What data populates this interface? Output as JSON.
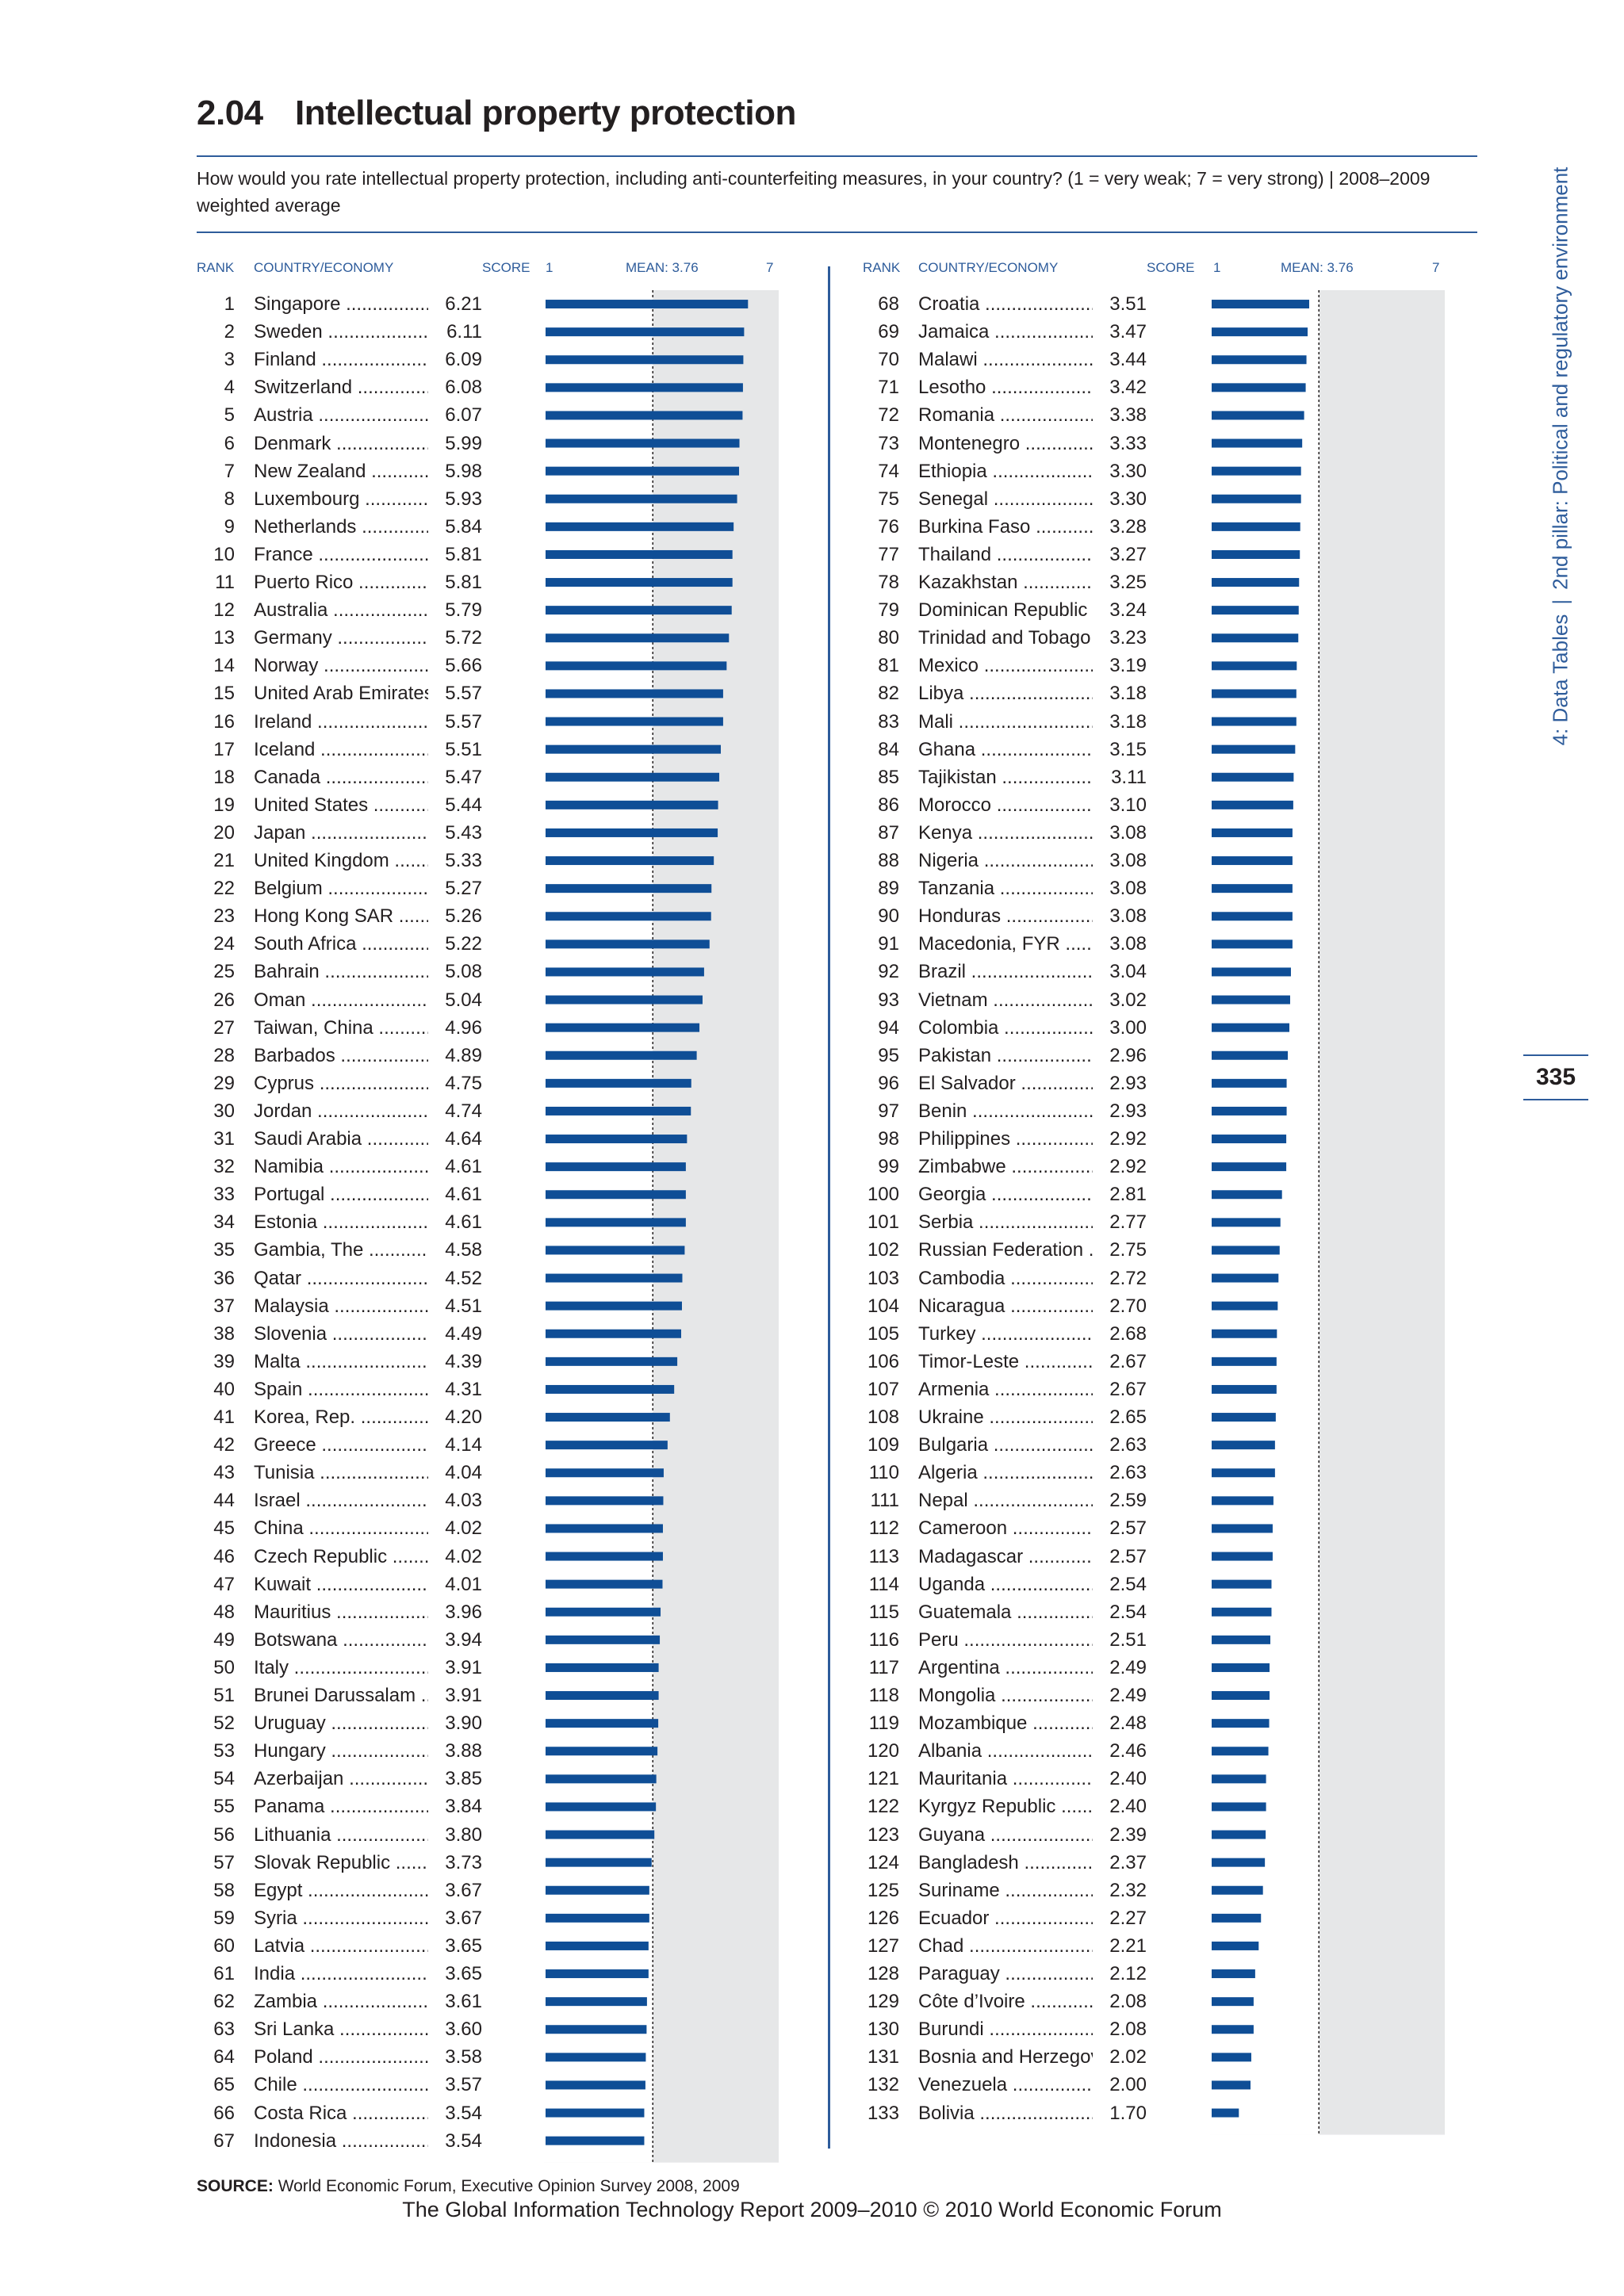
{
  "header": {
    "number": "2.04",
    "title": "Intellectual property protection",
    "question": "How would you rate intellectual property protection, including anti-counterfeiting measures, in your country? (1 = very weak; 7 = very strong)  |  2008–2009 weighted average"
  },
  "side_label": {
    "part1": "4: Data Tables",
    "separator": "|",
    "part2": "2nd pillar: Political and regulatory environment"
  },
  "page_number": "335",
  "columns": {
    "rank": "RANK",
    "country": "COUNTRY/ECONOMY",
    "score": "SCORE",
    "min": "1",
    "mean": "MEAN: 3.76",
    "max": "7"
  },
  "source": {
    "label": "SOURCE:",
    "text": "World Economic Forum, Executive Opinion Survey 2008, 2009"
  },
  "footer": "The Global Information Technology Report 2009–2010 © 2010 World Economic Forum",
  "colors": {
    "bar": "#0f4e96",
    "band": "#e6e7e8",
    "accent": "#2e5c9b"
  },
  "chart_data": {
    "type": "bar",
    "orientation": "horizontal",
    "xlim": [
      1,
      7
    ],
    "mean": 3.76,
    "mean_label": "MEAN: 3.76",
    "rows": [
      {
        "rank": "1",
        "country": "Singapore",
        "score": "6.21"
      },
      {
        "rank": "2",
        "country": "Sweden",
        "score": "6.11"
      },
      {
        "rank": "3",
        "country": "Finland",
        "score": "6.09"
      },
      {
        "rank": "4",
        "country": "Switzerland",
        "score": "6.08"
      },
      {
        "rank": "5",
        "country": "Austria",
        "score": "6.07"
      },
      {
        "rank": "6",
        "country": "Denmark",
        "score": "5.99"
      },
      {
        "rank": "7",
        "country": "New Zealand",
        "score": "5.98"
      },
      {
        "rank": "8",
        "country": "Luxembourg",
        "score": "5.93"
      },
      {
        "rank": "9",
        "country": "Netherlands",
        "score": "5.84"
      },
      {
        "rank": "10",
        "country": "France",
        "score": "5.81"
      },
      {
        "rank": "11",
        "country": "Puerto Rico",
        "score": "5.81"
      },
      {
        "rank": "12",
        "country": "Australia",
        "score": "5.79"
      },
      {
        "rank": "13",
        "country": "Germany",
        "score": "5.72"
      },
      {
        "rank": "14",
        "country": "Norway",
        "score": "5.66"
      },
      {
        "rank": "15",
        "country": "United Arab Emirates",
        "score": "5.57"
      },
      {
        "rank": "16",
        "country": "Ireland",
        "score": "5.57"
      },
      {
        "rank": "17",
        "country": "Iceland",
        "score": "5.51"
      },
      {
        "rank": "18",
        "country": "Canada",
        "score": "5.47"
      },
      {
        "rank": "19",
        "country": "United States",
        "score": "5.44"
      },
      {
        "rank": "20",
        "country": "Japan",
        "score": "5.43"
      },
      {
        "rank": "21",
        "country": "United Kingdom",
        "score": "5.33"
      },
      {
        "rank": "22",
        "country": "Belgium",
        "score": "5.27"
      },
      {
        "rank": "23",
        "country": "Hong Kong SAR",
        "score": "5.26"
      },
      {
        "rank": "24",
        "country": "South Africa",
        "score": "5.22"
      },
      {
        "rank": "25",
        "country": "Bahrain",
        "score": "5.08"
      },
      {
        "rank": "26",
        "country": "Oman",
        "score": "5.04"
      },
      {
        "rank": "27",
        "country": "Taiwan, China",
        "score": "4.96"
      },
      {
        "rank": "28",
        "country": "Barbados",
        "score": "4.89"
      },
      {
        "rank": "29",
        "country": "Cyprus",
        "score": "4.75"
      },
      {
        "rank": "30",
        "country": "Jordan",
        "score": "4.74"
      },
      {
        "rank": "31",
        "country": "Saudi Arabia",
        "score": "4.64"
      },
      {
        "rank": "32",
        "country": "Namibia",
        "score": "4.61"
      },
      {
        "rank": "33",
        "country": "Portugal",
        "score": "4.61"
      },
      {
        "rank": "34",
        "country": "Estonia",
        "score": "4.61"
      },
      {
        "rank": "35",
        "country": "Gambia, The",
        "score": "4.58"
      },
      {
        "rank": "36",
        "country": "Qatar",
        "score": "4.52"
      },
      {
        "rank": "37",
        "country": "Malaysia",
        "score": "4.51"
      },
      {
        "rank": "38",
        "country": "Slovenia",
        "score": "4.49"
      },
      {
        "rank": "39",
        "country": "Malta",
        "score": "4.39"
      },
      {
        "rank": "40",
        "country": "Spain",
        "score": "4.31"
      },
      {
        "rank": "41",
        "country": "Korea, Rep.",
        "score": "4.20"
      },
      {
        "rank": "42",
        "country": "Greece",
        "score": "4.14"
      },
      {
        "rank": "43",
        "country": "Tunisia",
        "score": "4.04"
      },
      {
        "rank": "44",
        "country": "Israel",
        "score": "4.03"
      },
      {
        "rank": "45",
        "country": "China",
        "score": "4.02"
      },
      {
        "rank": "46",
        "country": "Czech Republic",
        "score": "4.02"
      },
      {
        "rank": "47",
        "country": "Kuwait",
        "score": "4.01"
      },
      {
        "rank": "48",
        "country": "Mauritius",
        "score": "3.96"
      },
      {
        "rank": "49",
        "country": "Botswana",
        "score": "3.94"
      },
      {
        "rank": "50",
        "country": "Italy",
        "score": "3.91"
      },
      {
        "rank": "51",
        "country": "Brunei Darussalam",
        "score": "3.91"
      },
      {
        "rank": "52",
        "country": "Uruguay",
        "score": "3.90"
      },
      {
        "rank": "53",
        "country": "Hungary",
        "score": "3.88"
      },
      {
        "rank": "54",
        "country": "Azerbaijan",
        "score": "3.85"
      },
      {
        "rank": "55",
        "country": "Panama",
        "score": "3.84"
      },
      {
        "rank": "56",
        "country": "Lithuania",
        "score": "3.80"
      },
      {
        "rank": "57",
        "country": "Slovak Republic",
        "score": "3.73"
      },
      {
        "rank": "58",
        "country": "Egypt",
        "score": "3.67"
      },
      {
        "rank": "59",
        "country": "Syria",
        "score": "3.67"
      },
      {
        "rank": "60",
        "country": "Latvia",
        "score": "3.65"
      },
      {
        "rank": "61",
        "country": "India",
        "score": "3.65"
      },
      {
        "rank": "62",
        "country": "Zambia",
        "score": "3.61"
      },
      {
        "rank": "63",
        "country": "Sri Lanka",
        "score": "3.60"
      },
      {
        "rank": "64",
        "country": "Poland",
        "score": "3.58"
      },
      {
        "rank": "65",
        "country": "Chile",
        "score": "3.57"
      },
      {
        "rank": "66",
        "country": "Costa Rica",
        "score": "3.54"
      },
      {
        "rank": "67",
        "country": "Indonesia",
        "score": "3.54"
      },
      {
        "rank": "68",
        "country": "Croatia",
        "score": "3.51"
      },
      {
        "rank": "69",
        "country": "Jamaica",
        "score": "3.47"
      },
      {
        "rank": "70",
        "country": "Malawi",
        "score": "3.44"
      },
      {
        "rank": "71",
        "country": "Lesotho",
        "score": "3.42"
      },
      {
        "rank": "72",
        "country": "Romania",
        "score": "3.38"
      },
      {
        "rank": "73",
        "country": "Montenegro",
        "score": "3.33"
      },
      {
        "rank": "74",
        "country": "Ethiopia",
        "score": "3.30"
      },
      {
        "rank": "75",
        "country": "Senegal",
        "score": "3.30"
      },
      {
        "rank": "76",
        "country": "Burkina Faso",
        "score": "3.28"
      },
      {
        "rank": "77",
        "country": "Thailand",
        "score": "3.27"
      },
      {
        "rank": "78",
        "country": "Kazakhstan",
        "score": "3.25"
      },
      {
        "rank": "79",
        "country": "Dominican Republic",
        "score": "3.24"
      },
      {
        "rank": "80",
        "country": "Trinidad and Tobago",
        "score": "3.23"
      },
      {
        "rank": "81",
        "country": "Mexico",
        "score": "3.19"
      },
      {
        "rank": "82",
        "country": "Libya",
        "score": "3.18"
      },
      {
        "rank": "83",
        "country": "Mali",
        "score": "3.18"
      },
      {
        "rank": "84",
        "country": "Ghana",
        "score": "3.15"
      },
      {
        "rank": "85",
        "country": "Tajikistan",
        "score": "3.11"
      },
      {
        "rank": "86",
        "country": "Morocco",
        "score": "3.10"
      },
      {
        "rank": "87",
        "country": "Kenya",
        "score": "3.08"
      },
      {
        "rank": "88",
        "country": "Nigeria",
        "score": "3.08"
      },
      {
        "rank": "89",
        "country": "Tanzania",
        "score": "3.08"
      },
      {
        "rank": "90",
        "country": "Honduras",
        "score": "3.08"
      },
      {
        "rank": "91",
        "country": "Macedonia, FYR",
        "score": "3.08"
      },
      {
        "rank": "92",
        "country": "Brazil",
        "score": "3.04"
      },
      {
        "rank": "93",
        "country": "Vietnam",
        "score": "3.02"
      },
      {
        "rank": "94",
        "country": "Colombia",
        "score": "3.00"
      },
      {
        "rank": "95",
        "country": "Pakistan",
        "score": "2.96"
      },
      {
        "rank": "96",
        "country": "El Salvador",
        "score": "2.93"
      },
      {
        "rank": "97",
        "country": "Benin",
        "score": "2.93"
      },
      {
        "rank": "98",
        "country": "Philippines",
        "score": "2.92"
      },
      {
        "rank": "99",
        "country": "Zimbabwe",
        "score": "2.92"
      },
      {
        "rank": "100",
        "country": "Georgia",
        "score": "2.81"
      },
      {
        "rank": "101",
        "country": "Serbia",
        "score": "2.77"
      },
      {
        "rank": "102",
        "country": "Russian Federation",
        "score": "2.75"
      },
      {
        "rank": "103",
        "country": "Cambodia",
        "score": "2.72"
      },
      {
        "rank": "104",
        "country": "Nicaragua",
        "score": "2.70"
      },
      {
        "rank": "105",
        "country": "Turkey",
        "score": "2.68"
      },
      {
        "rank": "106",
        "country": "Timor-Leste",
        "score": "2.67"
      },
      {
        "rank": "107",
        "country": "Armenia",
        "score": "2.67"
      },
      {
        "rank": "108",
        "country": "Ukraine",
        "score": "2.65"
      },
      {
        "rank": "109",
        "country": "Bulgaria",
        "score": "2.63"
      },
      {
        "rank": "110",
        "country": "Algeria",
        "score": "2.63"
      },
      {
        "rank": "111",
        "country": "Nepal",
        "score": "2.59"
      },
      {
        "rank": "112",
        "country": "Cameroon",
        "score": "2.57"
      },
      {
        "rank": "113",
        "country": "Madagascar",
        "score": "2.57"
      },
      {
        "rank": "114",
        "country": "Uganda",
        "score": "2.54"
      },
      {
        "rank": "115",
        "country": "Guatemala",
        "score": "2.54"
      },
      {
        "rank": "116",
        "country": "Peru",
        "score": "2.51"
      },
      {
        "rank": "117",
        "country": "Argentina",
        "score": "2.49"
      },
      {
        "rank": "118",
        "country": "Mongolia",
        "score": "2.49"
      },
      {
        "rank": "119",
        "country": "Mozambique",
        "score": "2.48"
      },
      {
        "rank": "120",
        "country": "Albania",
        "score": "2.46"
      },
      {
        "rank": "121",
        "country": "Mauritania",
        "score": "2.40"
      },
      {
        "rank": "122",
        "country": "Kyrgyz Republic",
        "score": "2.40"
      },
      {
        "rank": "123",
        "country": "Guyana",
        "score": "2.39"
      },
      {
        "rank": "124",
        "country": "Bangladesh",
        "score": "2.37"
      },
      {
        "rank": "125",
        "country": "Suriname",
        "score": "2.32"
      },
      {
        "rank": "126",
        "country": "Ecuador",
        "score": "2.27"
      },
      {
        "rank": "127",
        "country": "Chad",
        "score": "2.21"
      },
      {
        "rank": "128",
        "country": "Paraguay",
        "score": "2.12"
      },
      {
        "rank": "129",
        "country": "Côte d’Ivoire",
        "score": "2.08"
      },
      {
        "rank": "130",
        "country": "Burundi",
        "score": "2.08"
      },
      {
        "rank": "131",
        "country": "Bosnia and Herzegovina",
        "score": "2.02"
      },
      {
        "rank": "132",
        "country": "Venezuela",
        "score": "2.00"
      },
      {
        "rank": "133",
        "country": "Bolivia",
        "score": "1.70"
      }
    ]
  }
}
